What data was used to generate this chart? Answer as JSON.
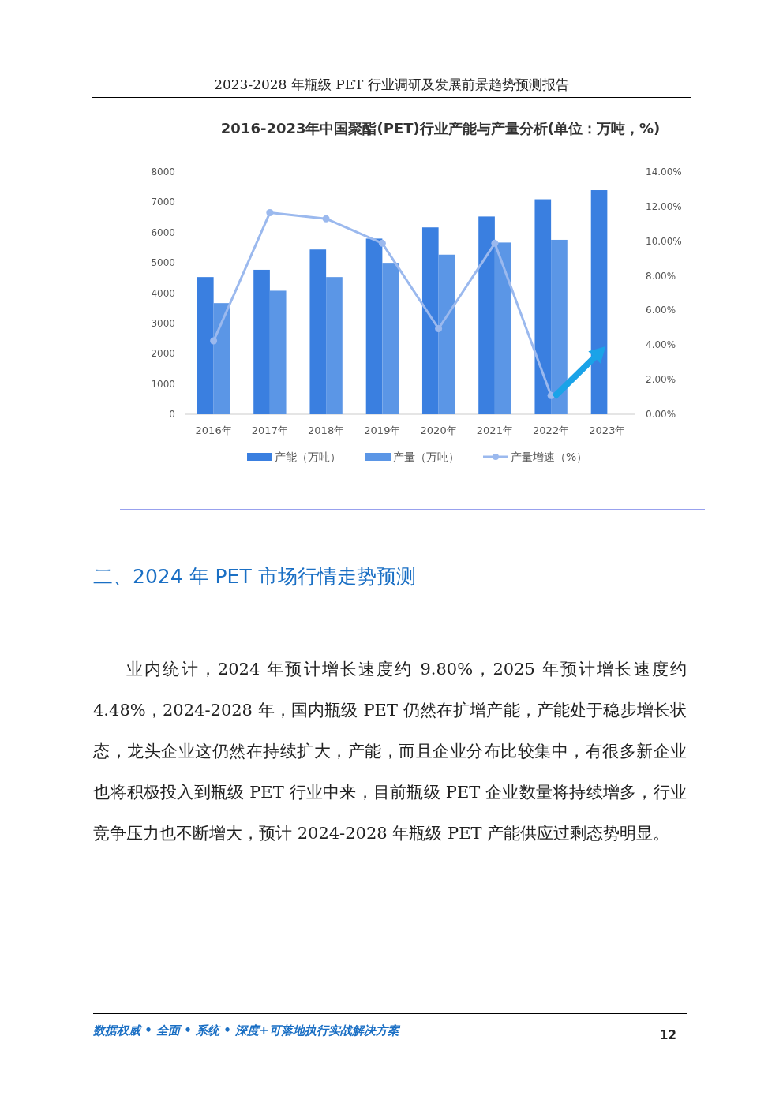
{
  "chart_data": {
    "type": "bar",
    "title": "2016-2023年中国聚酯(PET)行业产能与产量分析(单位：万吨，%)",
    "categories": [
      "2016年",
      "2017年",
      "2018年",
      "2019年",
      "2020年",
      "2021年",
      "2022年",
      "2023年"
    ],
    "series": [
      {
        "name": "产能（万吨）",
        "color": "#3a7fe0",
        "values": [
          4530,
          4770,
          5440,
          5800,
          6170,
          6530,
          7100,
          7400
        ]
      },
      {
        "name": "产量（万吨）",
        "color": "#5b96e6",
        "values": [
          3670,
          4080,
          4530,
          5000,
          5270,
          5670,
          5760,
          null
        ]
      },
      {
        "name": "产量增速（%）",
        "type": "line",
        "axis": "y2",
        "marker": "circle",
        "color": "#9bb9ee",
        "values": [
          4.24,
          11.65,
          11.3,
          9.88,
          4.95,
          9.88,
          1.08,
          null
        ]
      }
    ],
    "ylim": [
      0,
      8000
    ],
    "yticks": [
      0,
      1000,
      2000,
      3000,
      4000,
      5000,
      6000,
      7000,
      8000
    ],
    "y2lim": [
      0,
      14
    ],
    "y2ticks": [
      {
        "value": 0,
        "label": "0.00%"
      },
      {
        "value": 2,
        "label": "2.00%"
      },
      {
        "value": 4,
        "label": "4.00%"
      },
      {
        "value": 6,
        "label": "6.00%"
      },
      {
        "value": 8,
        "label": "8.00%"
      },
      {
        "value": 10,
        "label": "10.00%"
      },
      {
        "value": 12,
        "label": "12.00%"
      },
      {
        "value": 14,
        "label": "14.00%"
      }
    ],
    "legend": "bottom",
    "annotations": [
      "2023-2028 年瓶级 PET 行业调研及发展前景趋势预测报告",
      "二、2024 年 PET 市场行情走势预测",
      "业内统计，2024 年预计增长速度约 9.80%，2025 年预计增长速度约 4.48%，2024-2028 年，国内瓶级 PET 仍然在扩增产能，产能处于稳步增长状态，龙头企业这仍然在持续扩大，产能，而且企业分布比较集中，有很多新企业也将积极投入到瓶级 PET 行业中来，目前瓶级 PET 企业数量将持续增多，行业竞争压力也不断增大，预计 2024-2028 年瓶级 PET 产能供应过剩态势明显。",
      "数据权威 • 全面 • 系统 • 深度+可落地执行实战解决方案",
      "12"
    ]
  }
}
